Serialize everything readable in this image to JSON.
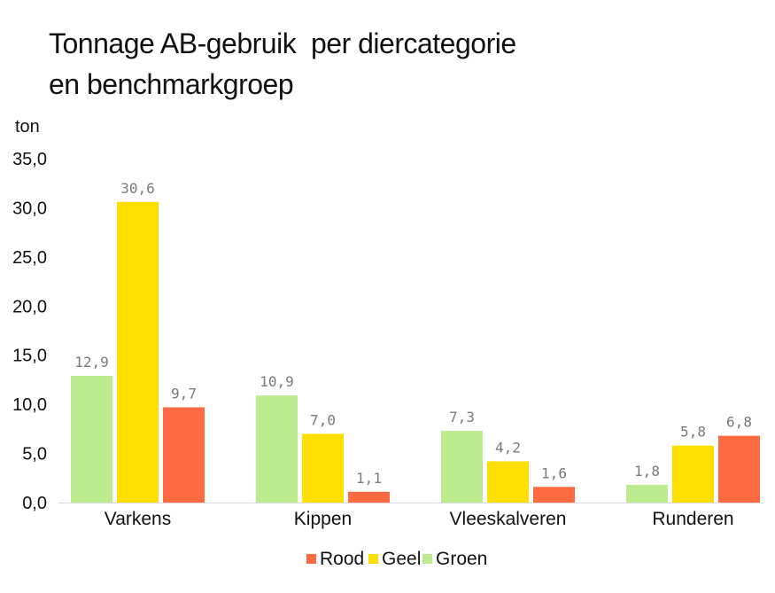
{
  "chart_data": {
    "type": "bar",
    "title_lines": [
      "Tonnage AB-gebruik  per diercategorie",
      "en benchmarkgroep"
    ],
    "ylabel": "ton",
    "xlabel": "",
    "ylim": [
      0,
      35
    ],
    "yticks": [
      "0,0",
      "5,0",
      "10,0",
      "15,0",
      "20,0",
      "25,0",
      "30,0",
      "35,0"
    ],
    "categories": [
      "Varkens",
      "Kippen",
      "Vleeskalveren",
      "Runderen"
    ],
    "series": [
      {
        "name": "Groen",
        "color": "#bdeb8f",
        "values": [
          12.9,
          10.9,
          7.3,
          1.8
        ],
        "labels": [
          "12,9",
          "10,9",
          "7,3",
          "1,8"
        ]
      },
      {
        "name": "Geel",
        "color": "#ffdf00",
        "values": [
          30.6,
          7.0,
          4.2,
          5.8
        ],
        "labels": [
          "30,6",
          "7,0",
          "4,2",
          "5,8"
        ]
      },
      {
        "name": "Rood",
        "color": "#ff6a40",
        "values": [
          9.7,
          1.1,
          1.6,
          6.8
        ],
        "labels": [
          "9,7",
          "1,1",
          "1,6",
          "6,8"
        ]
      }
    ],
    "legend_order": [
      "Rood",
      "Geel",
      "Groen"
    ],
    "legend_position": "bottom",
    "grid": false
  }
}
